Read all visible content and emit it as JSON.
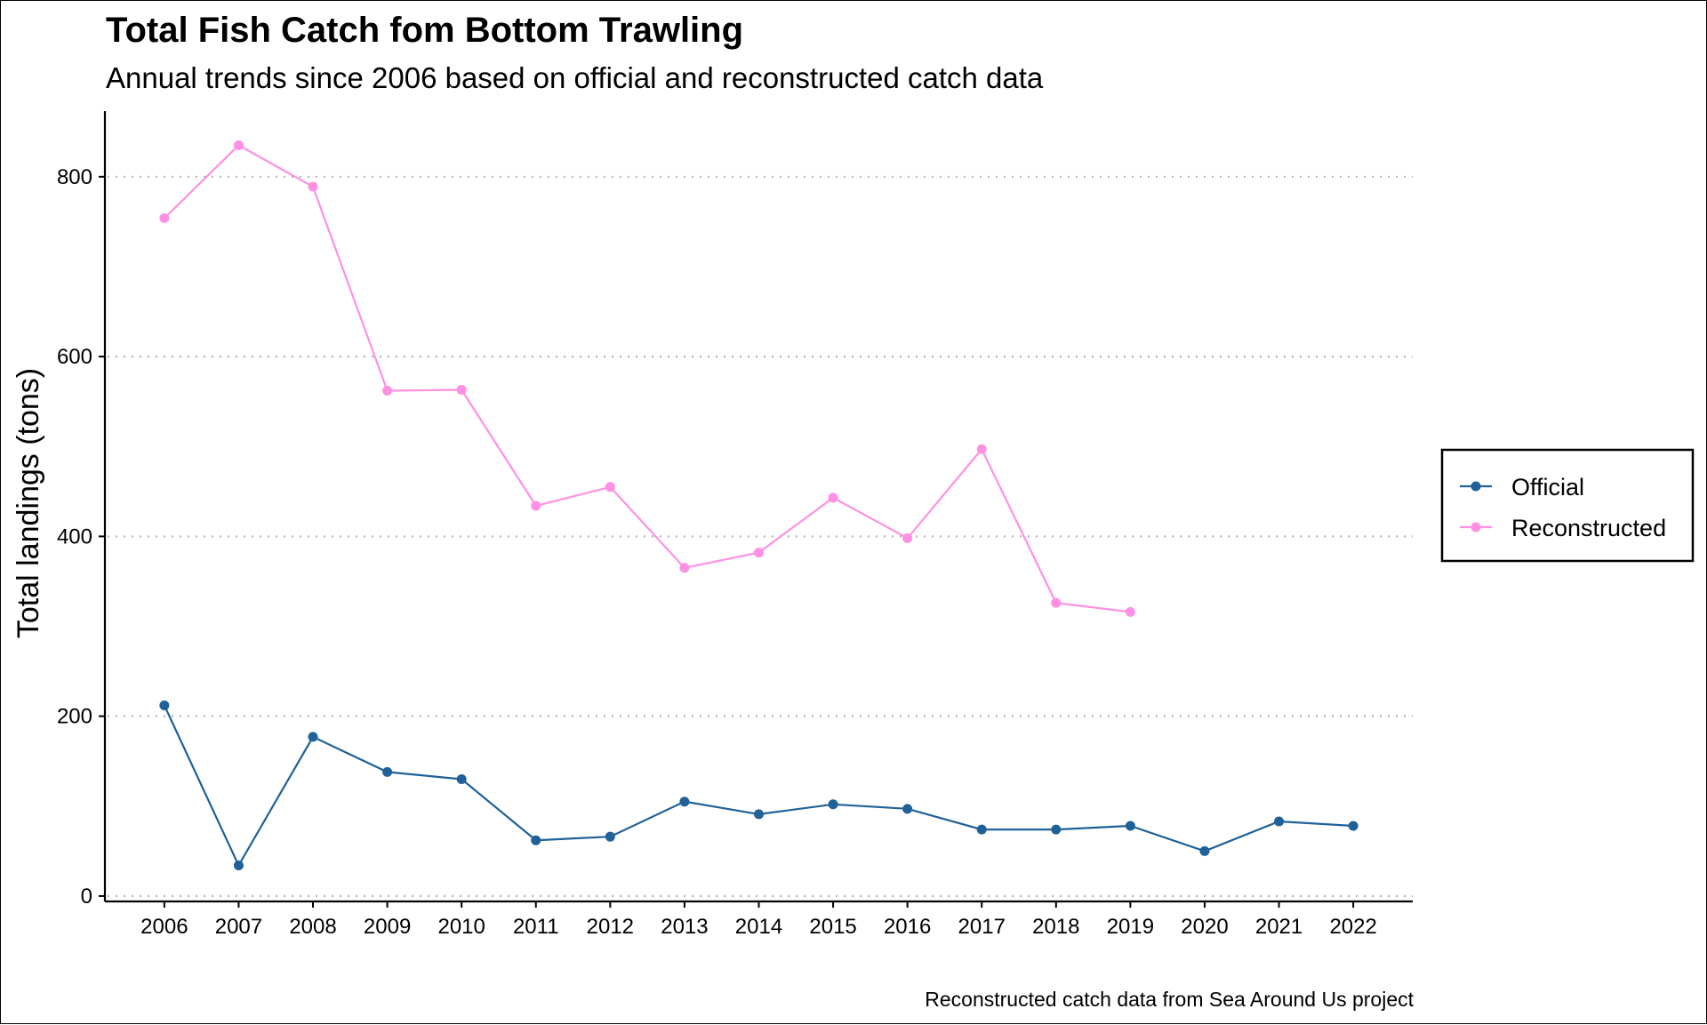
{
  "chart_data": {
    "type": "line",
    "title": "Total Fish Catch fom Bottom Trawling",
    "subtitle": "Annual trends since 2006 based on official and reconstructed catch data",
    "caption": "Reconstructed catch data from Sea Around Us project",
    "xlabel": "",
    "ylabel": "Total landings (tons)",
    "x": [
      2006,
      2007,
      2008,
      2009,
      2010,
      2011,
      2012,
      2013,
      2014,
      2015,
      2016,
      2017,
      2018,
      2019,
      2020,
      2021,
      2022
    ],
    "x_tick_labels": [
      "2006",
      "2007",
      "2008",
      "2009",
      "2010",
      "2011",
      "2012",
      "2013",
      "2014",
      "2015",
      "2016",
      "2017",
      "2018",
      "2019",
      "2020",
      "2021",
      "2022"
    ],
    "y_ticks": [
      0,
      200,
      400,
      600,
      800
    ],
    "y_tick_labels": [
      "0",
      "200",
      "400",
      "600",
      "800"
    ],
    "xlim": [
      2005.2,
      2022.8
    ],
    "ylim": [
      -6,
      873
    ],
    "grid": "horizontal dotted",
    "legend_position": "right",
    "series": [
      {
        "name": "Official",
        "color": "#1f6198",
        "x": [
          2006,
          2007,
          2008,
          2009,
          2010,
          2011,
          2012,
          2013,
          2014,
          2015,
          2016,
          2017,
          2018,
          2019,
          2020,
          2021,
          2022
        ],
        "values": [
          212,
          34,
          177,
          138,
          130,
          62,
          66,
          105,
          91,
          102,
          97,
          74,
          74,
          78,
          50,
          83,
          78
        ]
      },
      {
        "name": "Reconstructed",
        "color": "#ff90e3",
        "x": [
          2006,
          2007,
          2008,
          2009,
          2010,
          2011,
          2012,
          2013,
          2014,
          2015,
          2016,
          2017,
          2018,
          2019
        ],
        "values": [
          754,
          835,
          789,
          562,
          563,
          434,
          455,
          365,
          382,
          443,
          398,
          497,
          326,
          316
        ]
      }
    ]
  }
}
